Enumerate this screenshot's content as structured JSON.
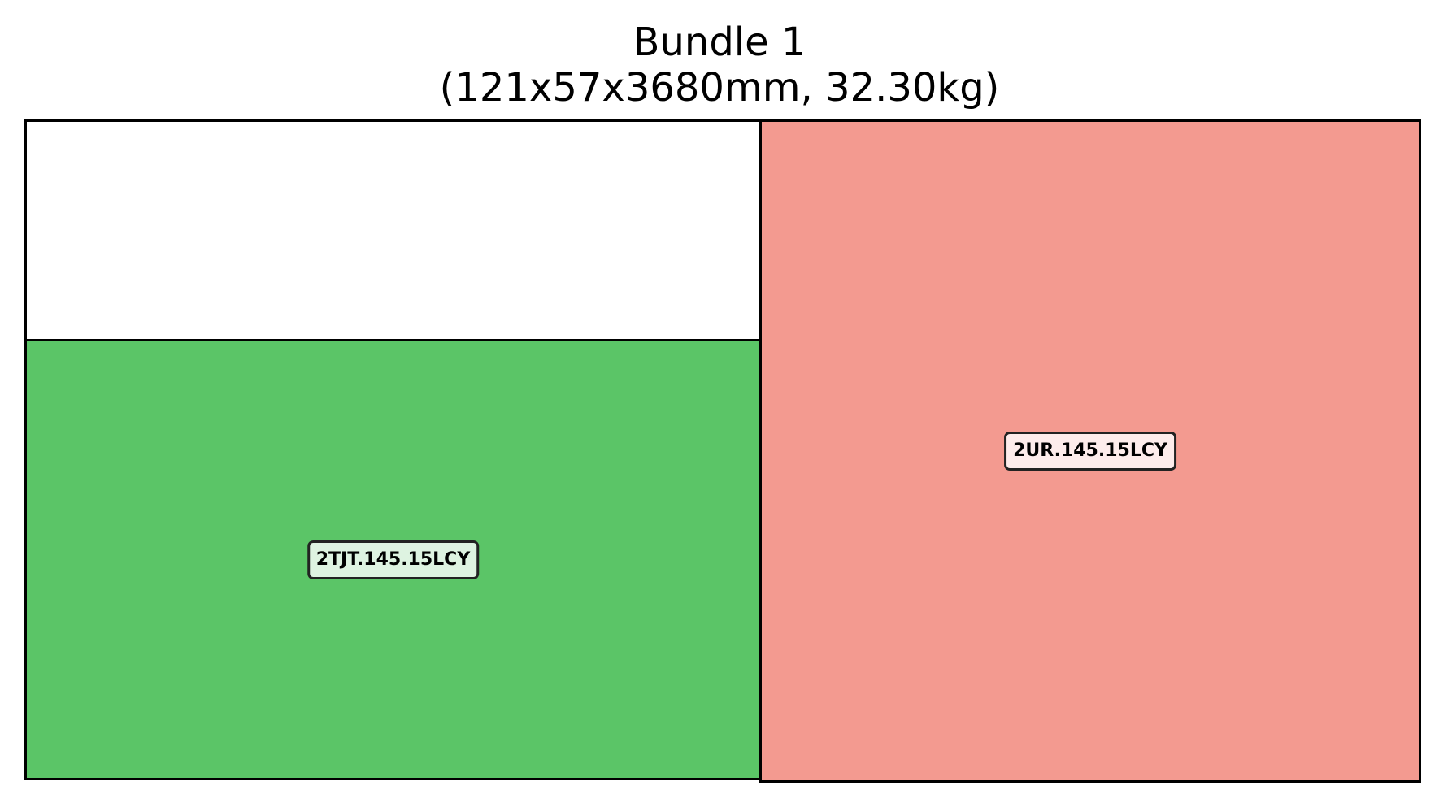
{
  "title": {
    "line1": "Bundle 1",
    "line2": "(121x57x3680mm, 32.30kg)"
  },
  "pieces": [
    {
      "label": "2TJT.145.15LCY",
      "fill": "#5bc567",
      "label_bg": "#def3e1"
    },
    {
      "label": "2UR.145.15LCY",
      "fill": "#f39a90",
      "label_bg": "#fdeceb"
    }
  ],
  "colors": {
    "outline": "#000000",
    "empty_space": "#ffffff"
  }
}
